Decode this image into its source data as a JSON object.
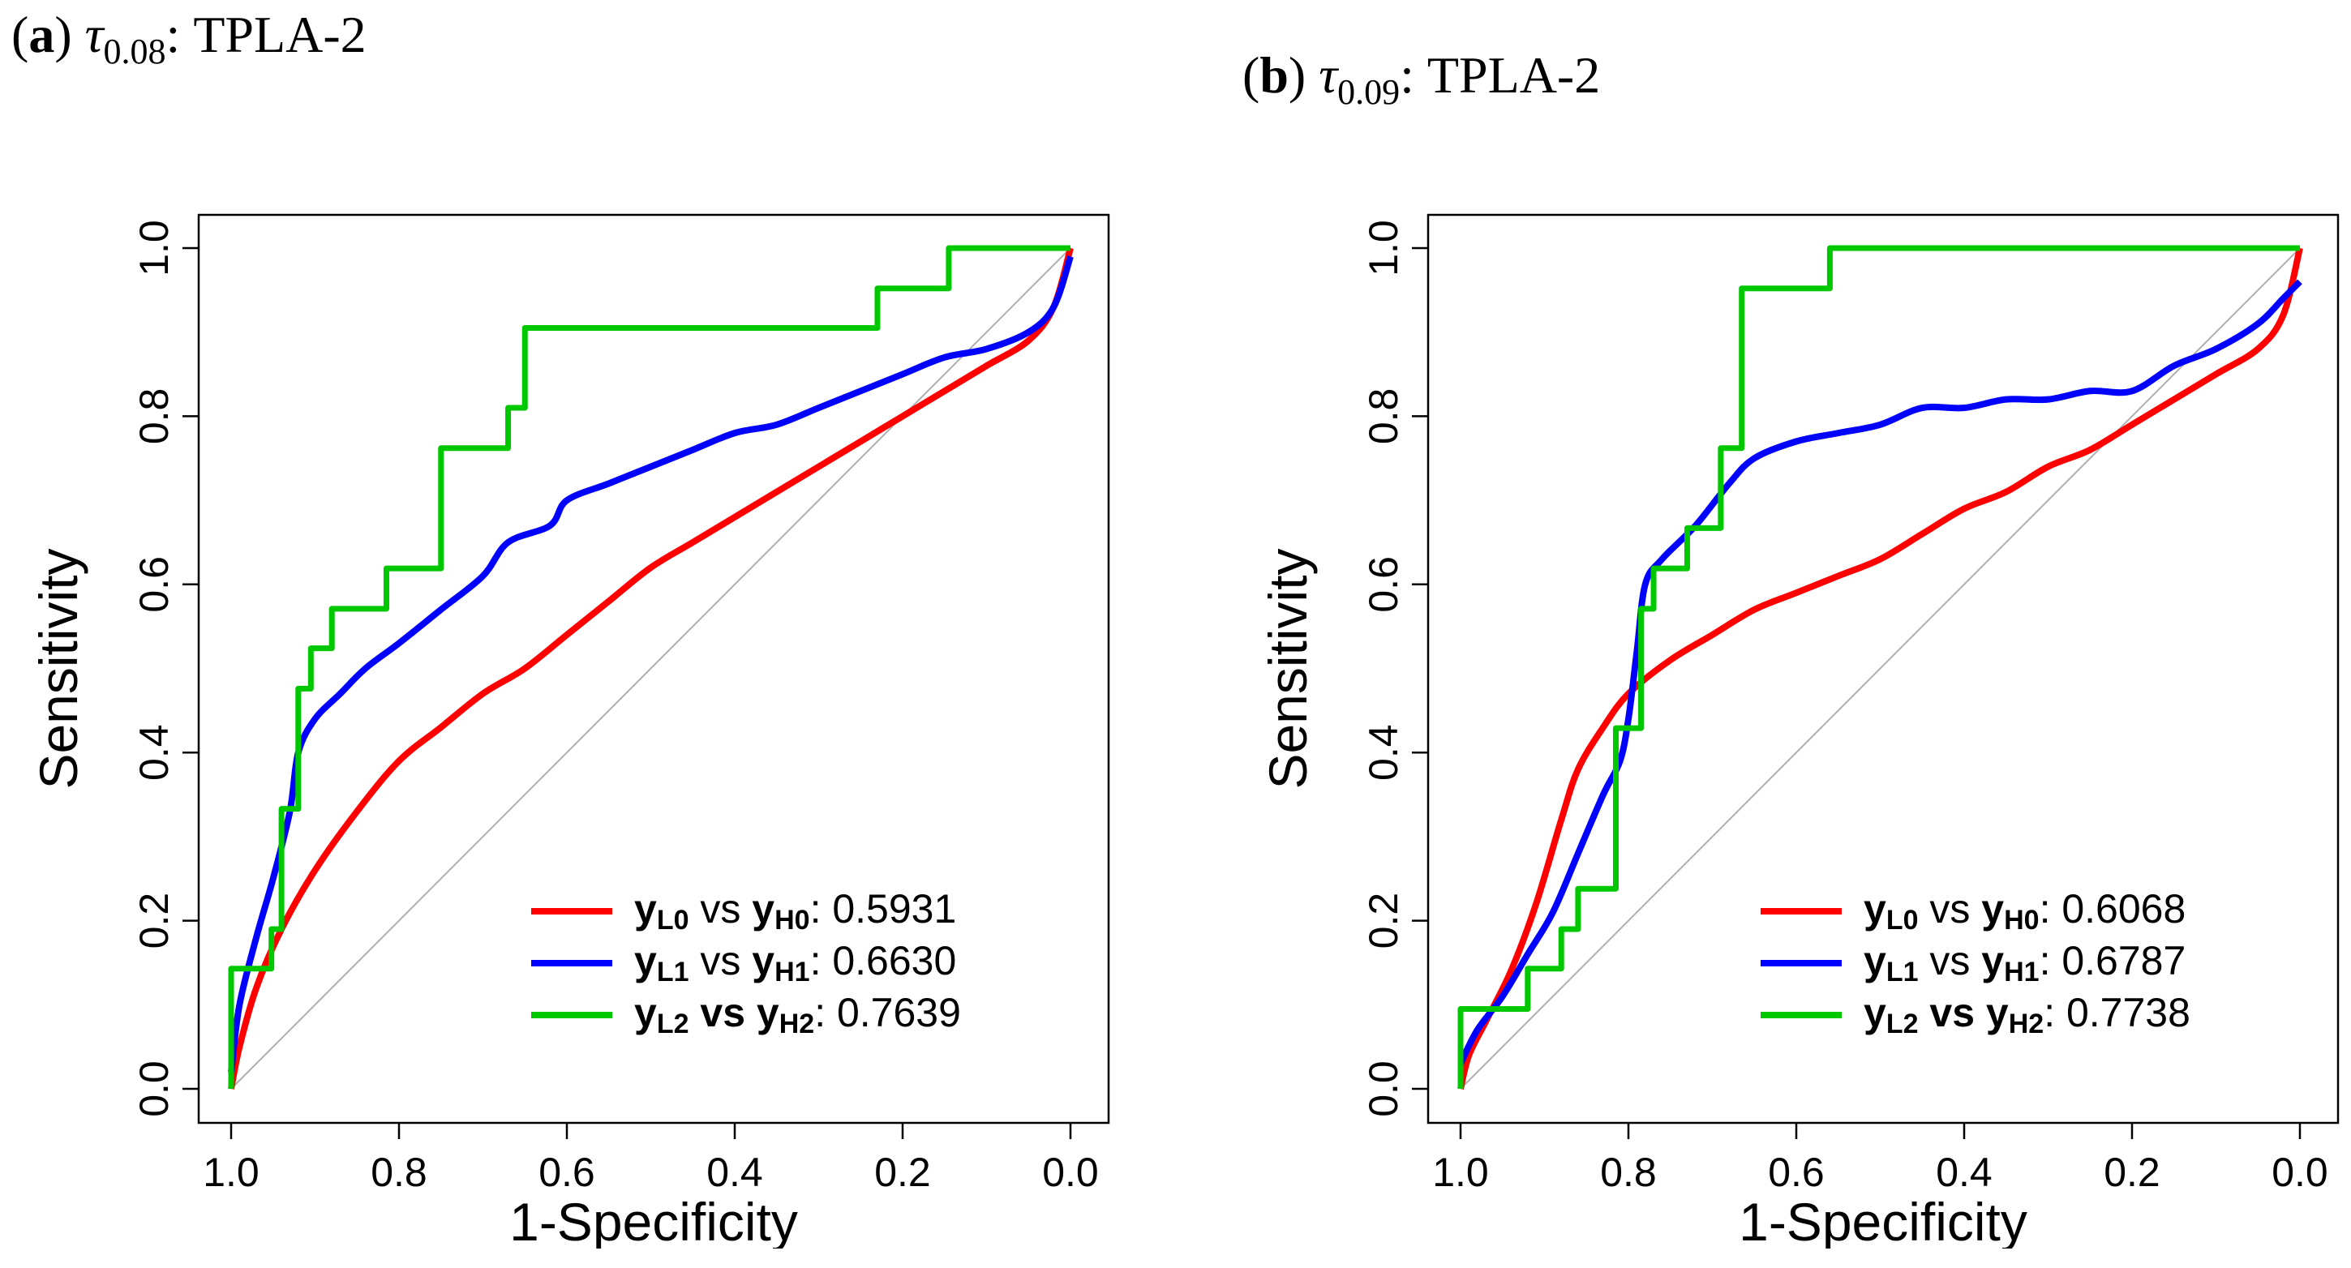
{
  "captions": [
    {
      "label": "a",
      "tau": "τ",
      "sub": "0.08",
      "title": ": TPLA-2"
    },
    {
      "label": "b",
      "tau": "τ",
      "sub": "0.09",
      "title": ": TPLA-2"
    }
  ],
  "colors": {
    "red": "#ff0000",
    "blue": "#0000ff",
    "green": "#00c800",
    "diag": "#b0b0b0",
    "axis": "#000000"
  },
  "chart_data": [
    {
      "type": "line",
      "title": "(a) τ0.08: TPLA-2",
      "xlabel": "1-Specificity",
      "ylabel": "Sensitivity",
      "xlim": [
        1.0,
        0.0
      ],
      "ylim": [
        0.0,
        1.0
      ],
      "xticks": [
        "1.0",
        "0.8",
        "0.6",
        "0.4",
        "0.2",
        "0.0"
      ],
      "yticks": [
        "0.0",
        "0.2",
        "0.4",
        "0.6",
        "0.8",
        "1.0"
      ],
      "legend_position": "bottom-right",
      "diagonal": true,
      "series": [
        {
          "name": "yL0 vs yH0",
          "L": "L0",
          "H": "H0",
          "vs": "vs",
          "auc": "0.5931",
          "color": "red",
          "style": "smooth",
          "points": [
            [
              1.0,
              0.0
            ],
            [
              0.99,
              0.05
            ],
            [
              0.97,
              0.12
            ],
            [
              0.94,
              0.19
            ],
            [
              0.9,
              0.26
            ],
            [
              0.85,
              0.33
            ],
            [
              0.8,
              0.39
            ],
            [
              0.75,
              0.43
            ],
            [
              0.7,
              0.47
            ],
            [
              0.65,
              0.5
            ],
            [
              0.6,
              0.54
            ],
            [
              0.55,
              0.58
            ],
            [
              0.5,
              0.62
            ],
            [
              0.45,
              0.65
            ],
            [
              0.4,
              0.68
            ],
            [
              0.35,
              0.71
            ],
            [
              0.3,
              0.74
            ],
            [
              0.25,
              0.77
            ],
            [
              0.2,
              0.8
            ],
            [
              0.15,
              0.83
            ],
            [
              0.1,
              0.86
            ],
            [
              0.05,
              0.89
            ],
            [
              0.02,
              0.93
            ],
            [
              0.0,
              1.0
            ]
          ]
        },
        {
          "name": "yL1 vs yH1",
          "L": "L1",
          "H": "H1",
          "vs": "vs",
          "auc": "0.6630",
          "color": "blue",
          "style": "smooth",
          "points": [
            [
              1.0,
              0.02
            ],
            [
              0.99,
              0.1
            ],
            [
              0.97,
              0.18
            ],
            [
              0.95,
              0.25
            ],
            [
              0.93,
              0.33
            ],
            [
              0.92,
              0.4
            ],
            [
              0.9,
              0.44
            ],
            [
              0.87,
              0.47
            ],
            [
              0.84,
              0.5
            ],
            [
              0.8,
              0.53
            ],
            [
              0.75,
              0.57
            ],
            [
              0.7,
              0.61
            ],
            [
              0.67,
              0.65
            ],
            [
              0.62,
              0.67
            ],
            [
              0.6,
              0.7
            ],
            [
              0.55,
              0.72
            ],
            [
              0.5,
              0.74
            ],
            [
              0.45,
              0.76
            ],
            [
              0.4,
              0.78
            ],
            [
              0.35,
              0.79
            ],
            [
              0.3,
              0.81
            ],
            [
              0.25,
              0.83
            ],
            [
              0.2,
              0.85
            ],
            [
              0.15,
              0.87
            ],
            [
              0.1,
              0.88
            ],
            [
              0.05,
              0.9
            ],
            [
              0.02,
              0.93
            ],
            [
              0.0,
              0.99
            ]
          ]
        },
        {
          "name": "yL2 vs yH2",
          "L": "L2",
          "H": "H2",
          "vs": "vs",
          "auc": "0.7639",
          "color": "green",
          "style": "step",
          "points": [
            [
              1.0,
              0.0
            ],
            [
              1.0,
              0.143
            ],
            [
              0.952,
              0.143
            ],
            [
              0.952,
              0.19
            ],
            [
              0.94,
              0.19
            ],
            [
              0.94,
              0.333
            ],
            [
              0.92,
              0.333
            ],
            [
              0.92,
              0.476
            ],
            [
              0.905,
              0.476
            ],
            [
              0.905,
              0.524
            ],
            [
              0.88,
              0.524
            ],
            [
              0.88,
              0.571
            ],
            [
              0.815,
              0.571
            ],
            [
              0.815,
              0.619
            ],
            [
              0.75,
              0.619
            ],
            [
              0.75,
              0.762
            ],
            [
              0.67,
              0.762
            ],
            [
              0.67,
              0.81
            ],
            [
              0.65,
              0.81
            ],
            [
              0.65,
              0.905
            ],
            [
              0.23,
              0.905
            ],
            [
              0.23,
              0.952
            ],
            [
              0.145,
              0.952
            ],
            [
              0.145,
              1.0
            ],
            [
              0.0,
              1.0
            ]
          ]
        }
      ]
    },
    {
      "type": "line",
      "title": "(b) τ0.09: TPLA-2",
      "xlabel": "1-Specificity",
      "ylabel": "Sensitivity",
      "xlim": [
        1.0,
        0.0
      ],
      "ylim": [
        0.0,
        1.0
      ],
      "xticks": [
        "1.0",
        "0.8",
        "0.6",
        "0.4",
        "0.2",
        "0.0"
      ],
      "yticks": [
        "0.0",
        "0.2",
        "0.4",
        "0.6",
        "0.8",
        "1.0"
      ],
      "legend_position": "bottom-right",
      "diagonal": true,
      "series": [
        {
          "name": "yL0 vs yH0",
          "L": "L0",
          "H": "H0",
          "vs": "vs",
          "auc": "0.6068",
          "color": "red",
          "style": "smooth",
          "points": [
            [
              1.0,
              0.0
            ],
            [
              0.99,
              0.04
            ],
            [
              0.97,
              0.08
            ],
            [
              0.94,
              0.14
            ],
            [
              0.91,
              0.22
            ],
            [
              0.88,
              0.32
            ],
            [
              0.86,
              0.38
            ],
            [
              0.83,
              0.43
            ],
            [
              0.8,
              0.47
            ],
            [
              0.75,
              0.51
            ],
            [
              0.7,
              0.54
            ],
            [
              0.65,
              0.57
            ],
            [
              0.6,
              0.59
            ],
            [
              0.55,
              0.61
            ],
            [
              0.5,
              0.63
            ],
            [
              0.45,
              0.66
            ],
            [
              0.4,
              0.69
            ],
            [
              0.35,
              0.71
            ],
            [
              0.3,
              0.74
            ],
            [
              0.25,
              0.76
            ],
            [
              0.2,
              0.79
            ],
            [
              0.15,
              0.82
            ],
            [
              0.1,
              0.85
            ],
            [
              0.05,
              0.88
            ],
            [
              0.02,
              0.92
            ],
            [
              0.0,
              1.0
            ]
          ]
        },
        {
          "name": "yL1 vs yH1",
          "L": "L1",
          "H": "H1",
          "vs": "vs",
          "auc": "0.6787",
          "color": "blue",
          "style": "smooth",
          "points": [
            [
              1.0,
              0.03
            ],
            [
              0.98,
              0.07
            ],
            [
              0.95,
              0.11
            ],
            [
              0.92,
              0.16
            ],
            [
              0.89,
              0.21
            ],
            [
              0.86,
              0.28
            ],
            [
              0.83,
              0.35
            ],
            [
              0.81,
              0.39
            ],
            [
              0.8,
              0.44
            ],
            [
              0.79,
              0.52
            ],
            [
              0.78,
              0.6
            ],
            [
              0.76,
              0.63
            ],
            [
              0.72,
              0.67
            ],
            [
              0.68,
              0.72
            ],
            [
              0.65,
              0.75
            ],
            [
              0.6,
              0.77
            ],
            [
              0.55,
              0.78
            ],
            [
              0.5,
              0.79
            ],
            [
              0.45,
              0.81
            ],
            [
              0.4,
              0.81
            ],
            [
              0.35,
              0.82
            ],
            [
              0.3,
              0.82
            ],
            [
              0.25,
              0.83
            ],
            [
              0.2,
              0.83
            ],
            [
              0.15,
              0.86
            ],
            [
              0.1,
              0.88
            ],
            [
              0.05,
              0.91
            ],
            [
              0.02,
              0.94
            ],
            [
              0.0,
              0.96
            ]
          ]
        },
        {
          "name": "yL2 vs yH2",
          "L": "L2",
          "H": "H2",
          "vs": "vs",
          "auc": "0.7738",
          "color": "green",
          "style": "step",
          "points": [
            [
              1.0,
              0.0
            ],
            [
              1.0,
              0.095
            ],
            [
              0.92,
              0.095
            ],
            [
              0.92,
              0.143
            ],
            [
              0.88,
              0.143
            ],
            [
              0.88,
              0.19
            ],
            [
              0.86,
              0.19
            ],
            [
              0.86,
              0.238
            ],
            [
              0.815,
              0.238
            ],
            [
              0.815,
              0.429
            ],
            [
              0.785,
              0.429
            ],
            [
              0.785,
              0.571
            ],
            [
              0.77,
              0.571
            ],
            [
              0.77,
              0.619
            ],
            [
              0.73,
              0.619
            ],
            [
              0.73,
              0.667
            ],
            [
              0.69,
              0.667
            ],
            [
              0.69,
              0.762
            ],
            [
              0.665,
              0.762
            ],
            [
              0.665,
              0.952
            ],
            [
              0.56,
              0.952
            ],
            [
              0.56,
              1.0
            ],
            [
              0.0,
              1.0
            ]
          ]
        }
      ]
    }
  ]
}
